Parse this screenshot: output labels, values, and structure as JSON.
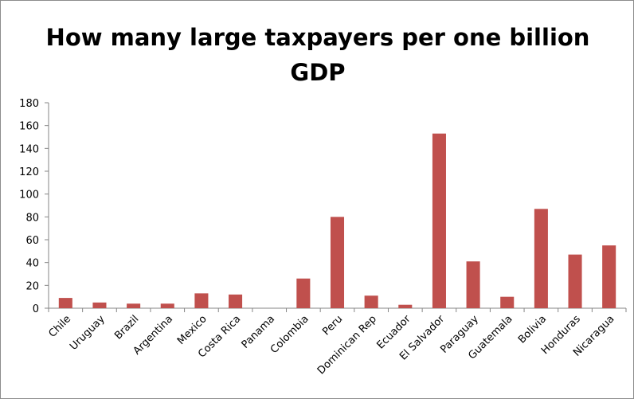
{
  "chart_data": {
    "type": "bar",
    "title_lines": [
      "How many large taxpayers per one billion",
      "GDP"
    ],
    "categories": [
      "Chile",
      "Uruguay",
      "Brazil",
      "Argentina",
      "Mexico",
      "Costa Rica",
      "Panama",
      "Colombia",
      "Peru",
      "Dominican Rep",
      "Ecuador",
      "El Salvador",
      "Paraguay",
      "Guatemala",
      "Bolivia",
      "Honduras",
      "Nicaragua"
    ],
    "values": [
      9,
      5,
      4,
      4,
      13,
      12,
      0,
      26,
      80,
      11,
      3,
      153,
      41,
      10,
      87,
      47,
      55
    ],
    "ylim": [
      0,
      180
    ],
    "yticks": [
      0,
      20,
      40,
      60,
      80,
      100,
      120,
      140,
      160,
      180
    ],
    "grid": false,
    "legend": "none",
    "bar_color": "#c0504d",
    "axis_color": "#868686"
  }
}
